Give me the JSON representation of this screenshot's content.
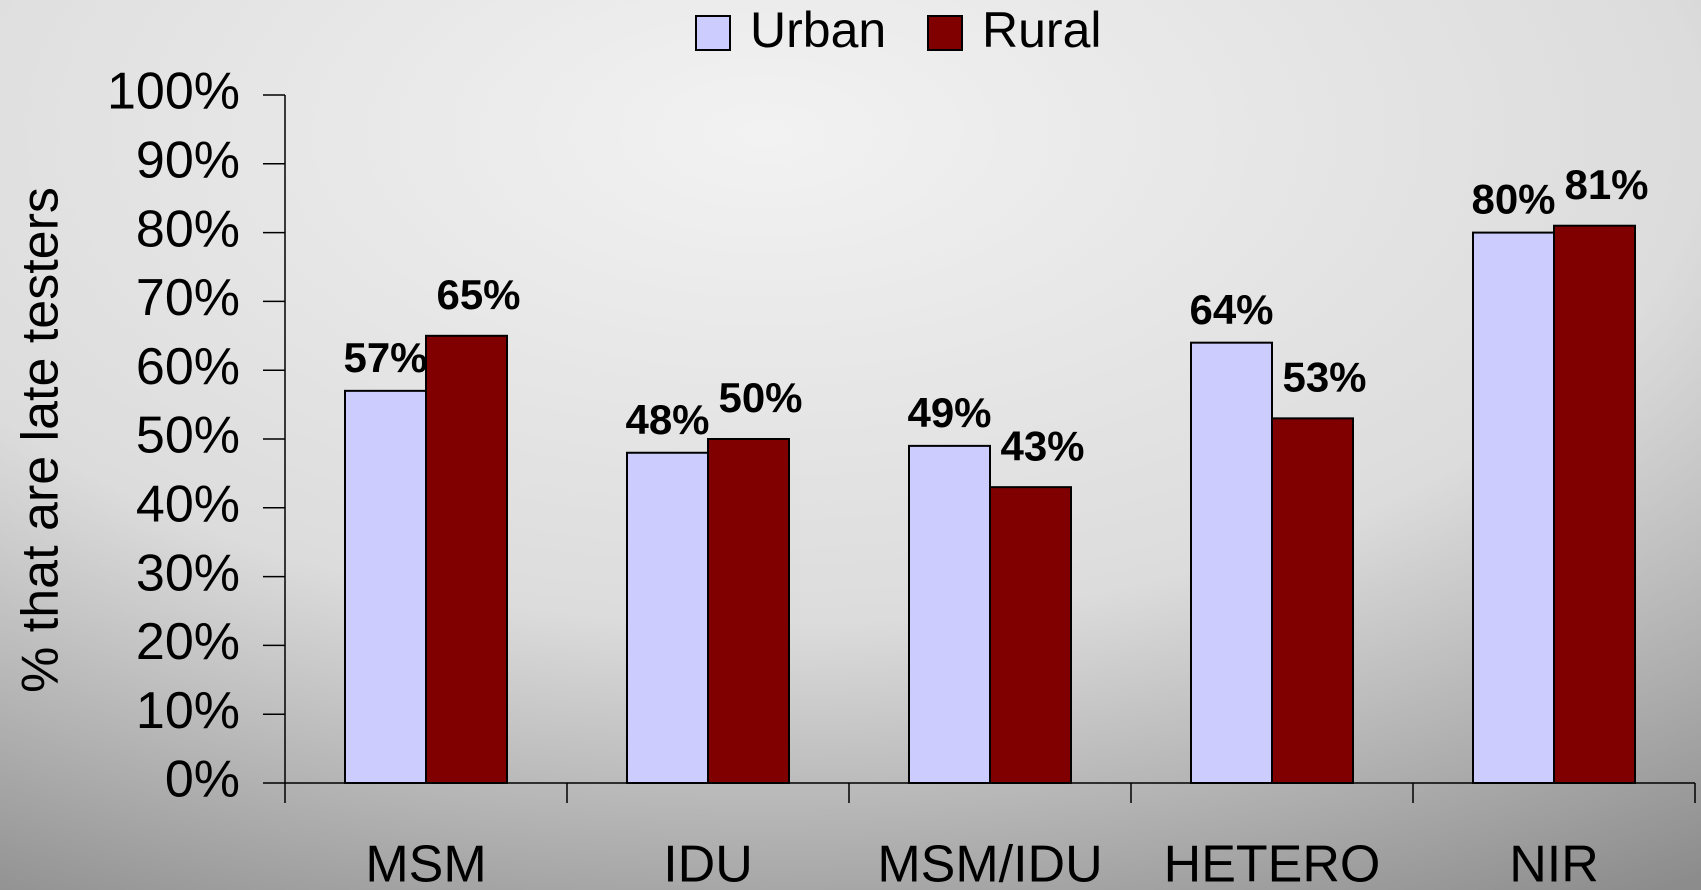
{
  "chart_data": {
    "type": "bar",
    "y_label": "% that are late testers",
    "categories": [
      "MSM",
      "IDU",
      "MSM/IDU",
      "HETERO",
      "NIR"
    ],
    "series": [
      {
        "name": "Urban",
        "color": "#ccccff",
        "values": [
          57,
          48,
          49,
          64,
          80
        ],
        "value_labels": [
          "57%",
          "48%",
          "49%",
          "64%",
          "80%"
        ]
      },
      {
        "name": "Rural",
        "color": "#800000",
        "values": [
          65,
          50,
          43,
          53,
          81
        ],
        "value_labels": [
          "65%",
          "50%",
          "43%",
          "53%",
          "81%"
        ]
      }
    ],
    "ylim": [
      0,
      100
    ],
    "yticks": [
      {
        "value": 0,
        "label": "0%"
      },
      {
        "value": 10,
        "label": "10%"
      },
      {
        "value": 20,
        "label": "20%"
      },
      {
        "value": 30,
        "label": "30%"
      },
      {
        "value": 40,
        "label": "40%"
      },
      {
        "value": 50,
        "label": "50%"
      },
      {
        "value": 60,
        "label": "60%"
      },
      {
        "value": 70,
        "label": "70%"
      },
      {
        "value": 80,
        "label": "80%"
      },
      {
        "value": 90,
        "label": "90%"
      },
      {
        "value": 100,
        "label": "100%"
      }
    ],
    "legend": "top"
  }
}
